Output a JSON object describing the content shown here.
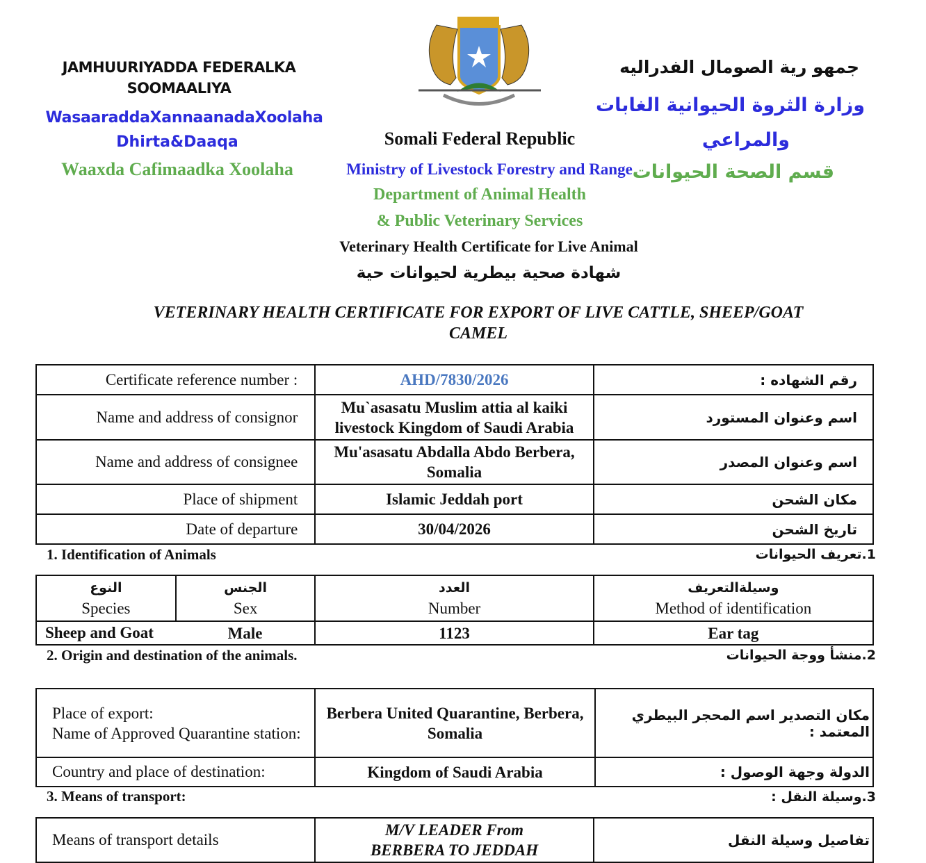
{
  "header": {
    "so_line1": "JAMHUURIYADDA FEDERALKA",
    "so_line2": "SOOMAALIYA",
    "so_ministry1": "WasaaraddaXannaanadaXoolaha",
    "so_ministry2": "Dhirta&Daaqa",
    "so_dept": "Waaxda Cafimaadka Xoolaha",
    "ar_line1": "جمهو رية الصومال الفدراليه",
    "ar_ministry1": "وزارة الثروة الحيوانية الغابات",
    "ar_ministry2": "والمراعي",
    "ar_dept": "قسم الصحة الحيوانات",
    "en_republic": "Somali Federal Republic",
    "en_ministry": "Ministry of Livestock Forestry and Range",
    "en_dept1": "Department of Animal Health",
    "en_dept2": "& Public Veterinary Services",
    "en_cert": "Veterinary Health Certificate for Live Animal",
    "ar_cert": "شهادة صحية بيطرية لحيوانات حية",
    "emblem": "somalia-coat-of-arms",
    "colors": {
      "blue": "#2c2cdc",
      "green": "#5fac4e",
      "ref": "#4a78c0"
    }
  },
  "title_line1": "VETERINARY HEALTH CERTIFICATE FOR EXPORT OF LIVE CATTLE, SHEEP/GOAT",
  "title_line2": "CAMEL",
  "general": [
    {
      "en": "Certificate reference number :",
      "value": "AHD/7830/2026",
      "ar": "رقم الشهاده :"
    },
    {
      "en": "Name and address of consignor",
      "value": "Mu`asasatu Muslim attia al kaiki livestock Kingdom of Saudi Arabia",
      "ar": "اسم وعنوان المستورد"
    },
    {
      "en": "Name and address of consignee",
      "value": "Mu'asasatu Abdalla Abdo Berbera, Somalia",
      "ar": "اسم وعنوان المصدر"
    },
    {
      "en": "Place of shipment",
      "value": "Islamic Jeddah port",
      "ar": "مكان الشحن"
    },
    {
      "en": "Date of departure",
      "value": "30/04/2026",
      "ar": "تاريخ الشحن"
    }
  ],
  "section1": {
    "en": "1. Identification of Animals",
    "ar": "1.تعريف الحيوانات",
    "headers": [
      {
        "ar": "النوع",
        "en": "Species"
      },
      {
        "ar": "الجنس",
        "en": "Sex"
      },
      {
        "ar": "العدد",
        "en": "Number"
      },
      {
        "ar": "وسيلةالتعريف",
        "en": "Method of identification"
      }
    ],
    "row": {
      "species": "Sheep and Goat",
      "sex": "Male",
      "number": "1123",
      "method": "Ear tag"
    }
  },
  "section2": {
    "en": "2. Origin and destination of the animals.",
    "ar": "2.منشأ ووجة الحيوانات",
    "rows": [
      {
        "en": "Place of export:\nName of Approved Quarantine station:",
        "value": "Berbera United Quarantine, Berbera, Somalia",
        "ar": "مكان التصدير اسم المحجر البيطري المعتمد :"
      },
      {
        "en": "Country and place of destination:",
        "value": "Kingdom of Saudi Arabia",
        "ar": "الدولة وجهة الوصول :"
      }
    ]
  },
  "section3": {
    "en": "3. Means of transport:",
    "ar": "3.وسيلة النقل :",
    "row": {
      "en": "Means of transport details",
      "value": "M/V LEADER From BERBERA TO JEDDAH",
      "ar": "تفاصيل وسيلة النقل"
    }
  }
}
